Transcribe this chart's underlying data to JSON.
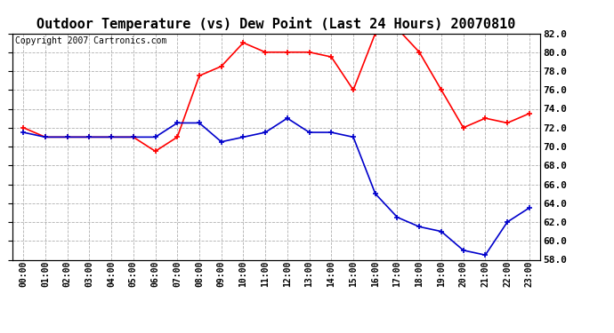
{
  "title": "Outdoor Temperature (vs) Dew Point (Last 24 Hours) 20070810",
  "copyright": "Copyright 2007 Cartronics.com",
  "hours": [
    "00:00",
    "01:00",
    "02:00",
    "03:00",
    "04:00",
    "05:00",
    "06:00",
    "07:00",
    "08:00",
    "09:00",
    "10:00",
    "11:00",
    "12:00",
    "13:00",
    "14:00",
    "15:00",
    "16:00",
    "17:00",
    "18:00",
    "19:00",
    "20:00",
    "21:00",
    "22:00",
    "23:00"
  ],
  "temp": [
    72.0,
    71.0,
    71.0,
    71.0,
    71.0,
    71.0,
    69.5,
    71.0,
    77.5,
    78.5,
    81.0,
    80.0,
    80.0,
    80.0,
    79.5,
    76.0,
    82.0,
    82.5,
    80.0,
    76.0,
    72.0,
    73.0,
    72.5,
    73.5
  ],
  "dew": [
    71.5,
    71.0,
    71.0,
    71.0,
    71.0,
    71.0,
    71.0,
    72.5,
    72.5,
    70.5,
    71.0,
    71.5,
    73.0,
    71.5,
    71.5,
    71.0,
    65.0,
    62.5,
    61.5,
    61.0,
    59.0,
    58.5,
    62.0,
    63.5
  ],
  "temp_color": "#ff0000",
  "dew_color": "#0000cc",
  "bg_color": "#ffffff",
  "grid_color": "#b0b0b0",
  "ylim": [
    58.0,
    82.0
  ],
  "yticks": [
    58.0,
    60.0,
    62.0,
    64.0,
    66.0,
    68.0,
    70.0,
    72.0,
    74.0,
    76.0,
    78.0,
    80.0,
    82.0
  ],
  "title_fontsize": 11,
  "copyright_fontsize": 7
}
